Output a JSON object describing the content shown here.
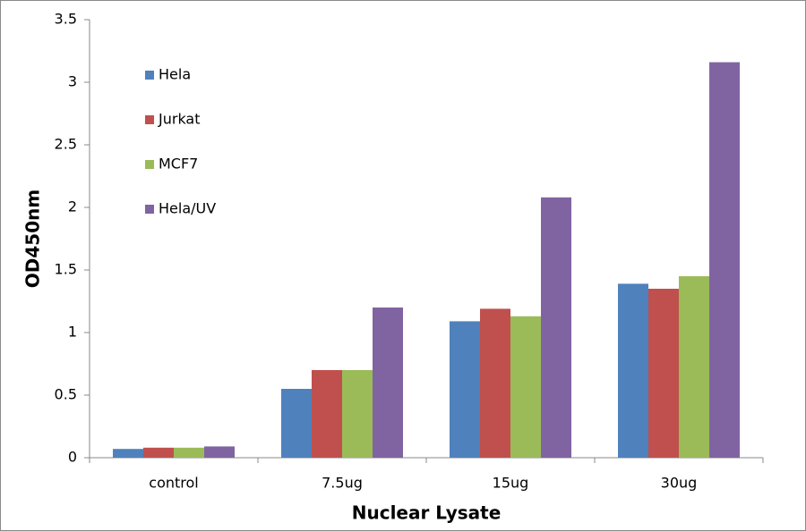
{
  "chart_data": {
    "type": "bar",
    "x_label": "Nuclear Lysate",
    "y_label": "OD450nm",
    "categories": [
      "control",
      "7.5ug",
      "15ug",
      "30ug"
    ],
    "series": [
      {
        "name": "Hela",
        "color": "#4f81bd",
        "values": [
          0.07,
          0.55,
          1.09,
          1.39
        ]
      },
      {
        "name": "Jurkat",
        "color": "#c0504d",
        "values": [
          0.08,
          0.7,
          1.19,
          1.35
        ]
      },
      {
        "name": "MCF7",
        "color": "#9bbb59",
        "values": [
          0.08,
          0.7,
          1.13,
          1.45
        ]
      },
      {
        "name": "Hela/UV",
        "color": "#8064a2",
        "values": [
          0.09,
          1.2,
          2.08,
          3.16
        ]
      }
    ],
    "ylim": [
      0,
      3.5
    ],
    "yticks": [
      0,
      0.5,
      1,
      1.5,
      2,
      2.5,
      3,
      3.5
    ],
    "grid": false,
    "legend": "top-left"
  }
}
